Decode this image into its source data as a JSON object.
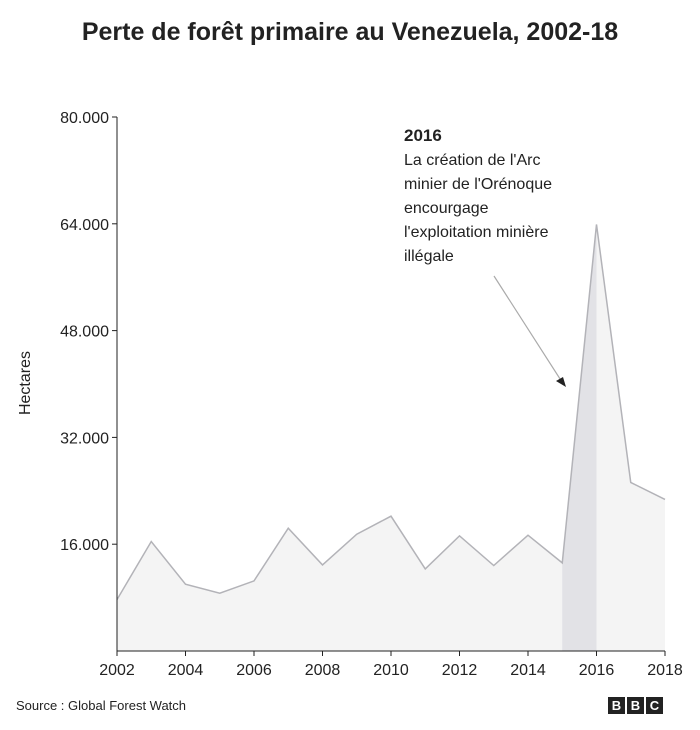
{
  "chart_data": {
    "type": "area",
    "title": "Perte de forêt primaire au Venezuela, 2002-18",
    "ylabel": "Hectares",
    "xlabel": "",
    "x": [
      2002,
      2003,
      2004,
      2005,
      2006,
      2007,
      2008,
      2009,
      2010,
      2011,
      2012,
      2013,
      2014,
      2015,
      2016,
      2017,
      2018
    ],
    "values": [
      7700,
      16400,
      10000,
      8650,
      10500,
      18400,
      12900,
      17500,
      20200,
      12300,
      17250,
      12800,
      17350,
      13200,
      63900,
      25250,
      22700
    ],
    "xlim": [
      2002,
      2018
    ],
    "ylim": [
      0,
      80000
    ],
    "xticks": [
      "2002",
      "2004",
      "2006",
      "2008",
      "2010",
      "2012",
      "2014",
      "2016",
      "2018"
    ],
    "yticks": [
      16000,
      32000,
      48000,
      64000,
      80000
    ],
    "ytick_labels": [
      "16.000",
      "32.000",
      "48.000",
      "64.000",
      "80.000"
    ],
    "grid": false,
    "highlight_range": [
      2015,
      2016
    ],
    "colors": {
      "fill": "#f4f4f4",
      "line": "#b3b3b8",
      "highlight": "#e2e2e6",
      "axis": "#222222"
    },
    "annotation": {
      "year": "2016",
      "lines": [
        "La création de l'Arc",
        "minier de l'Orénoque",
        "encourgage",
        "l'exploitation minière",
        "illégale"
      ]
    }
  },
  "footer": {
    "source": "Source : Global Forest Watch",
    "logo": [
      "B",
      "B",
      "C"
    ]
  }
}
